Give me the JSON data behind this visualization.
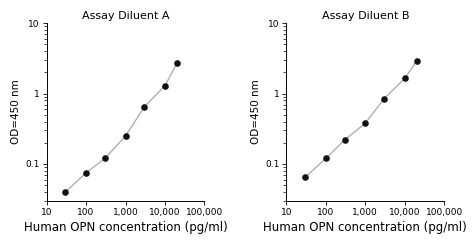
{
  "panel_A": {
    "title": "Assay Diluent A",
    "x": [
      30,
      100,
      300,
      1000,
      3000,
      10000,
      20000
    ],
    "y": [
      0.04,
      0.075,
      0.12,
      0.25,
      0.65,
      1.3,
      2.7
    ]
  },
  "panel_B": {
    "title": "Assay Diluent B",
    "x": [
      30,
      100,
      300,
      1000,
      3000,
      10000,
      20000
    ],
    "y": [
      0.065,
      0.12,
      0.22,
      0.38,
      0.85,
      1.65,
      2.9
    ]
  },
  "xlabel": "Human OPN concentration (pg/ml)",
  "ylabel": "OD=450 nm",
  "xlim": [
    10,
    100000
  ],
  "ylim": [
    0.03,
    10
  ],
  "xticks": [
    10,
    100,
    1000,
    10000,
    100000
  ],
  "xticklabels": [
    "10",
    "100",
    "1,000",
    "10,000",
    "100,000"
  ],
  "yticks": [
    0.1,
    1,
    10
  ],
  "yticklabels": [
    "0.1",
    "1",
    "10"
  ],
  "line_color": "#b0b0b0",
  "marker_color": "#111111",
  "title_fontsize": 8,
  "label_fontsize": 7.5,
  "tick_fontsize": 6.5,
  "xlabel_fontsize": 8.5
}
